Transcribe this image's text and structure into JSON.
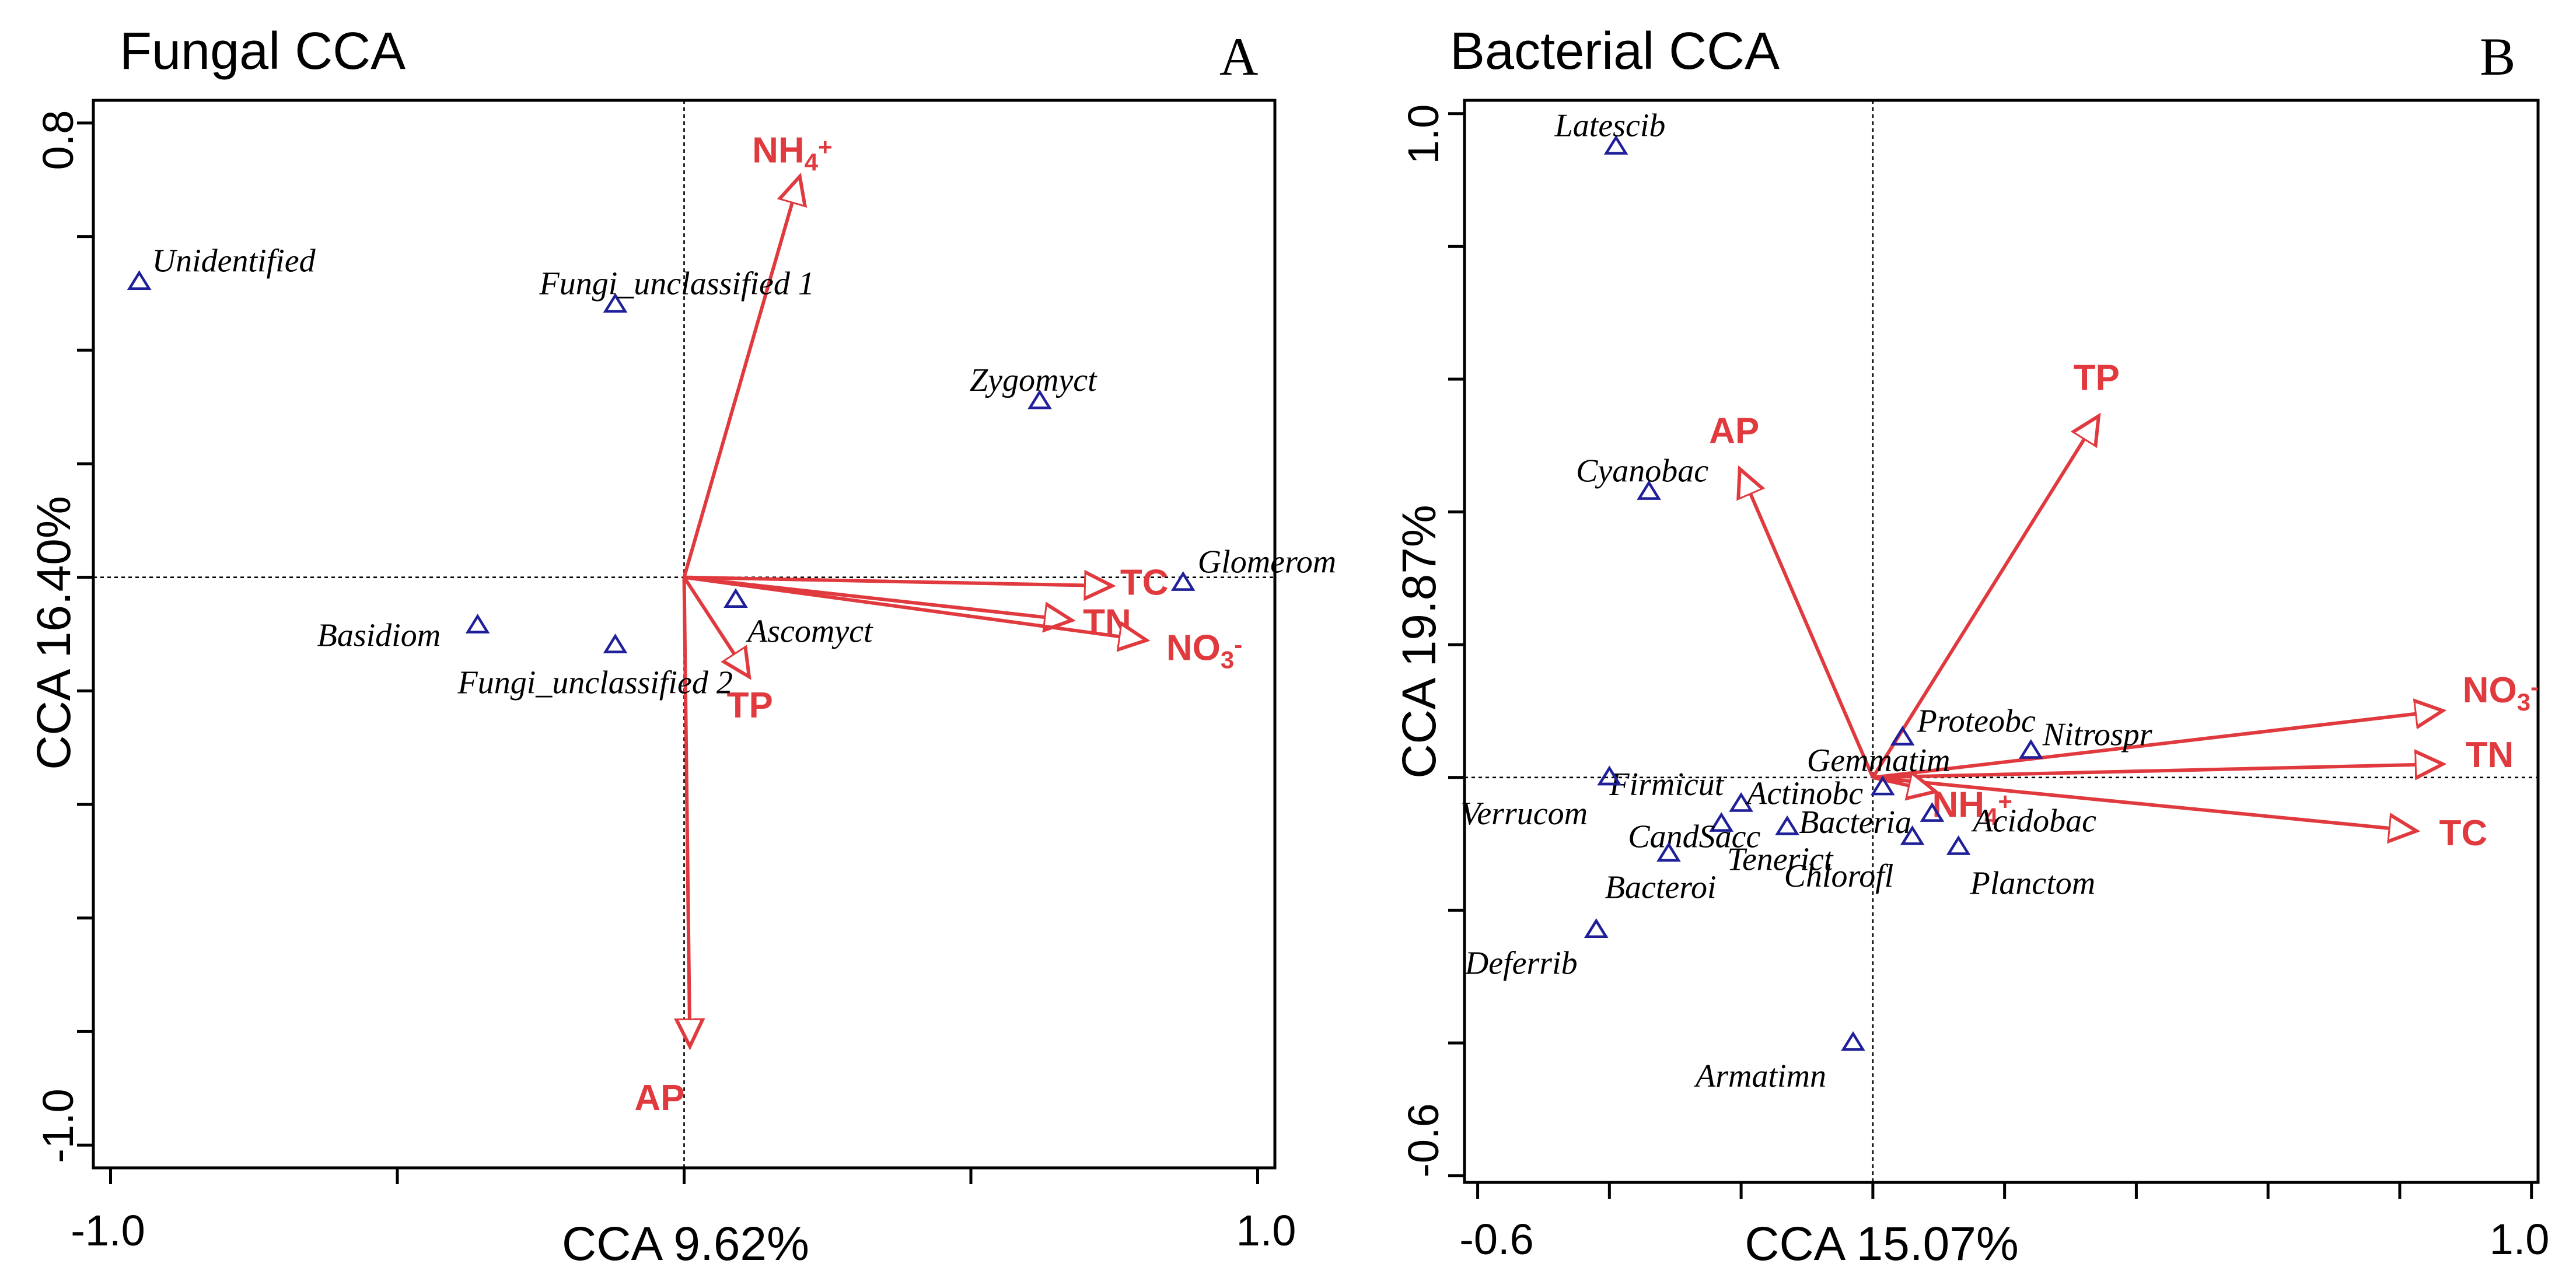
{
  "colors": {
    "arrow": "#e03a3e",
    "taxon": "#1f1f99",
    "axis": "#000000"
  },
  "chart_data": [
    {
      "type": "scatter",
      "title": "Fungal CCA",
      "panel_letter": "A",
      "xlabel": "CCA 9.62%",
      "ylabel": "CCA 16.40%",
      "xlim": [
        -1.03,
        1.03
      ],
      "ylim": [
        -1.04,
        0.84
      ],
      "xticks": [
        -1.0,
        1.0
      ],
      "xtick_labels": [
        "-1.0",
        "1.0"
      ],
      "yticks": [
        -1.0,
        0.8
      ],
      "ytick_labels": [
        "-1.0",
        "0.8"
      ],
      "minor_xticks": [
        -0.5,
        0,
        0.5
      ],
      "minor_yticks": [
        -0.8,
        -0.6,
        -0.4,
        -0.2,
        0,
        0.2,
        0.4,
        0.6
      ],
      "points": [
        {
          "name": "Unidentified",
          "x": -0.95,
          "y": 0.52
        },
        {
          "name": "Fungi_unclassified 1",
          "x": -0.12,
          "y": 0.48
        },
        {
          "name": "Zygomyct",
          "x": 0.62,
          "y": 0.31
        },
        {
          "name": "Glomerom",
          "x": 0.87,
          "y": -0.01
        },
        {
          "name": "Ascomyct",
          "x": 0.09,
          "y": -0.04
        },
        {
          "name": "Basidiom",
          "x": -0.36,
          "y": -0.085
        },
        {
          "name": "Fungi_unclassified 2",
          "x": -0.12,
          "y": -0.12
        }
      ],
      "vectors": [
        {
          "name": "NH4+",
          "x": 0.2,
          "y": 0.7
        },
        {
          "name": "TC",
          "x": 0.74,
          "y": -0.015
        },
        {
          "name": "TN",
          "x": 0.67,
          "y": -0.075
        },
        {
          "name": "NO3-",
          "x": 0.8,
          "y": -0.11
        },
        {
          "name": "TP",
          "x": 0.11,
          "y": -0.17
        },
        {
          "name": "AP",
          "x": 0.01,
          "y": -0.82
        }
      ]
    },
    {
      "type": "scatter",
      "title": "Bacterial CCA",
      "panel_letter": "B",
      "xlabel": "CCA 15.07%",
      "ylabel": "CCA 19.87%",
      "xlim": [
        -0.62,
        1.01
      ],
      "ylim": [
        -0.61,
        1.02
      ],
      "xticks": [
        -0.6,
        1.0
      ],
      "xtick_labels": [
        "-0.6",
        "1.0"
      ],
      "yticks": [
        -0.6,
        1.0
      ],
      "ytick_labels": [
        "-0.6",
        "1.0"
      ],
      "minor_xticks": [
        -0.4,
        -0.2,
        0,
        0.2,
        0.4,
        0.6,
        0.8
      ],
      "minor_yticks": [
        -0.4,
        -0.2,
        0,
        0.2,
        0.4,
        0.6,
        0.8
      ],
      "points": [
        {
          "name": "Latescib",
          "x": -0.39,
          "y": 0.95
        },
        {
          "name": "Cyanobac",
          "x": -0.34,
          "y": 0.43
        },
        {
          "name": "Proteobc",
          "x": 0.045,
          "y": 0.06
        },
        {
          "name": "Nitrospr",
          "x": 0.24,
          "y": 0.04
        },
        {
          "name": "Gemmatim",
          "x": 0.015,
          "y": -0.015
        },
        {
          "name": "Firmicut",
          "x": -0.4,
          "y": 0.0
        },
        {
          "name": "Actinobc",
          "x": -0.2,
          "y": -0.04
        },
        {
          "name": "CandSacc",
          "x": -0.23,
          "y": -0.07
        },
        {
          "name": "Bacteria",
          "x": -0.13,
          "y": -0.075
        },
        {
          "name": "Tenerict",
          "x": -0.31,
          "y": -0.115
        },
        {
          "name": "Chlorofl",
          "x": 0.06,
          "y": -0.09
        },
        {
          "name": "Acidobac",
          "x": 0.09,
          "y": -0.055
        },
        {
          "name": "Planctom",
          "x": 0.13,
          "y": -0.105
        },
        {
          "name": "Verrucom",
          "x": -0.4,
          "y": 0.0
        },
        {
          "name": "Bacteroi",
          "x": -0.42,
          "y": -0.23
        },
        {
          "name": "Deferrib",
          "x": -0.42,
          "y": -0.23
        },
        {
          "name": "Armatimn",
          "x": -0.03,
          "y": -0.4
        }
      ],
      "vectors": [
        {
          "name": "TP",
          "x": 0.34,
          "y": 0.54
        },
        {
          "name": "AP",
          "x": -0.2,
          "y": 0.46
        },
        {
          "name": "NO3-",
          "x": 0.86,
          "y": 0.1
        },
        {
          "name": "TN",
          "x": 0.86,
          "y": 0.02
        },
        {
          "name": "TC",
          "x": 0.82,
          "y": -0.08
        },
        {
          "name": "NH4+",
          "x": 0.09,
          "y": -0.02
        }
      ]
    }
  ]
}
